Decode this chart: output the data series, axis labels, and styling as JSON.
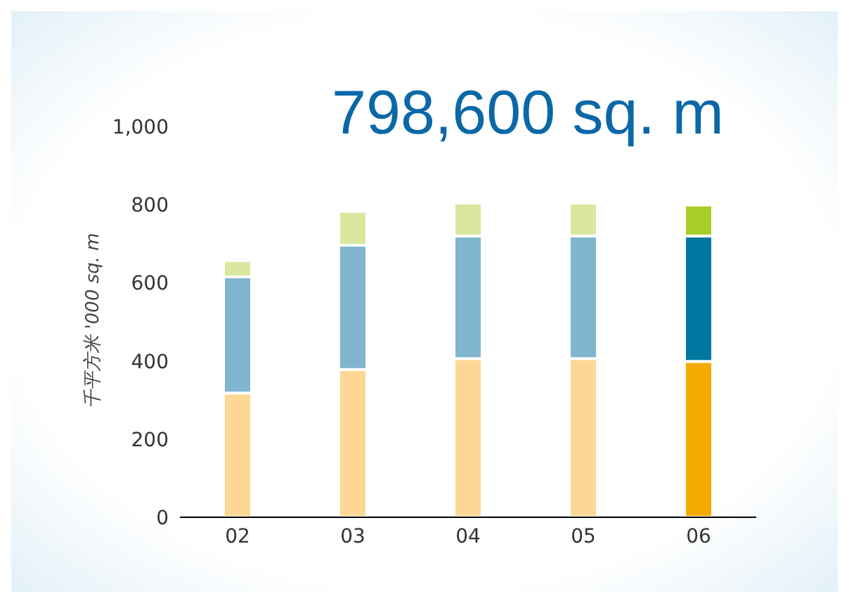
{
  "chart_data": {
    "type": "bar",
    "title": "798,600 sq. m",
    "ylabel": "千平方米  '000 sq. m",
    "categories": [
      "02",
      "03",
      "04",
      "05",
      "06"
    ],
    "stacked": true,
    "series": [
      {
        "colors": [
          "#fdd795",
          "#fdd795",
          "#fdd795",
          "#fdd795",
          "#f5ab00"
        ],
        "values": [
          318,
          378,
          406,
          406,
          399
        ]
      },
      {
        "colors": [
          "#7fb5cf",
          "#7fb5cf",
          "#7fb5cf",
          "#7fb5cf",
          "#0077a0"
        ],
        "values": [
          297,
          318,
          314,
          314,
          321
        ]
      },
      {
        "colors": [
          "#d9e89e",
          "#d9e89e",
          "#d9e89e",
          "#d9e89e",
          "#a8cc28"
        ],
        "values": [
          42,
          87,
          84,
          84,
          79
        ]
      }
    ],
    "ylim": [
      0,
      1000
    ],
    "yticks": [
      0,
      200,
      400,
      600,
      800,
      {
        "value": 1000,
        "label": "1,000"
      }
    ]
  }
}
